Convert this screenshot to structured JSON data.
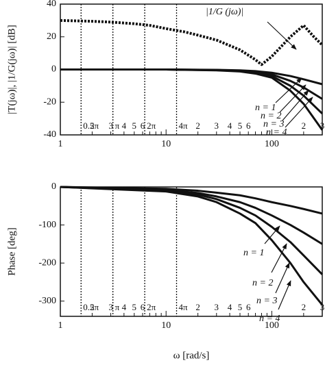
{
  "chart_data": [
    {
      "type": "line",
      "ylabel": "|T(jω)|, |1/G(jω)| [dB]",
      "xscale": "log",
      "xlim": [
        1,
        300
      ],
      "ylim": [
        -40,
        40
      ],
      "yticks": [
        -40,
        -20,
        0,
        20,
        40
      ],
      "xticks": [
        1,
        2,
        3,
        4,
        5,
        6,
        10,
        {
          "value": 20,
          "label": "2"
        },
        {
          "value": 30,
          "label": "3"
        },
        {
          "value": 40,
          "label": "4"
        },
        {
          "value": 50,
          "label": "5"
        },
        {
          "value": 60,
          "label": "6"
        },
        100,
        {
          "value": 200,
          "label": "2"
        },
        {
          "value": 300,
          "label": "3"
        }
      ],
      "xminorticks": [
        7,
        8,
        9,
        70,
        80,
        90
      ],
      "vlines": [
        {
          "value": 1.5708,
          "label": "0.5π"
        },
        {
          "value": 3.1416,
          "label": "π"
        },
        {
          "value": 6.2832,
          "label": "2π"
        },
        {
          "value": 12.566,
          "label": "4π"
        }
      ],
      "series": [
        {
          "name": "|1/G (jω)|",
          "color": "#111111",
          "style": "dotted",
          "x": [
            1,
            2,
            3,
            5,
            7,
            10,
            15,
            20,
            30,
            50,
            70,
            80,
            100,
            150,
            200,
            250,
            300
          ],
          "values": [
            30,
            29.5,
            29,
            28,
            27,
            25,
            23,
            21,
            18,
            12,
            6,
            3,
            8,
            20,
            27,
            20,
            15
          ]
        },
        {
          "name": "n = 1",
          "color": "#111111",
          "style": "solid",
          "x": [
            1,
            10,
            30,
            50,
            70,
            100,
            150,
            200,
            300
          ],
          "values": [
            0,
            0,
            -0.2,
            -0.5,
            -1,
            -2,
            -4,
            -6,
            -9
          ]
        },
        {
          "name": "n = 2",
          "color": "#111111",
          "style": "solid",
          "x": [
            1,
            10,
            30,
            50,
            70,
            100,
            150,
            200,
            300
          ],
          "values": [
            0,
            0,
            -0.3,
            -0.8,
            -1.5,
            -3,
            -7,
            -11,
            -18
          ]
        },
        {
          "name": "n = 3",
          "color": "#111111",
          "style": "solid",
          "x": [
            1,
            10,
            30,
            50,
            70,
            100,
            150,
            200,
            300
          ],
          "values": [
            0,
            0,
            -0.4,
            -1,
            -2,
            -4,
            -10,
            -16,
            -27
          ]
        },
        {
          "name": "n = 4",
          "color": "#111111",
          "style": "solid",
          "x": [
            1,
            10,
            30,
            50,
            70,
            100,
            150,
            200,
            300
          ],
          "values": [
            0,
            0,
            -0.5,
            -1.2,
            -2.5,
            -5,
            -13,
            -21,
            -37
          ]
        }
      ]
    },
    {
      "type": "line",
      "ylabel": "Phase [deg]",
      "xlabel": "ω [rad/s]",
      "xscale": "log",
      "xlim": [
        1,
        300
      ],
      "ylim": [
        -340,
        0
      ],
      "yticks": [
        -300,
        -200,
        -100,
        0
      ],
      "xticks": [
        1,
        2,
        3,
        4,
        5,
        6,
        10,
        {
          "value": 20,
          "label": "2"
        },
        {
          "value": 30,
          "label": "3"
        },
        {
          "value": 40,
          "label": "4"
        },
        {
          "value": 50,
          "label": "5"
        },
        {
          "value": 60,
          "label": "6"
        },
        100,
        {
          "value": 200,
          "label": "2"
        },
        {
          "value": 300,
          "label": "3"
        }
      ],
      "xminorticks": [
        7,
        8,
        9,
        70,
        80,
        90
      ],
      "vlines": [
        {
          "value": 1.5708,
          "label": "0.5π"
        },
        {
          "value": 3.1416,
          "label": "π"
        },
        {
          "value": 6.2832,
          "label": "2π"
        },
        {
          "value": 12.566,
          "label": "4π"
        }
      ],
      "series": [
        {
          "name": "n = 1",
          "color": "#111111",
          "style": "solid",
          "x": [
            1,
            10,
            20,
            30,
            50,
            70,
            100,
            150,
            200,
            300
          ],
          "values": [
            0,
            -5,
            -10,
            -15,
            -22,
            -30,
            -40,
            -50,
            -58,
            -70
          ]
        },
        {
          "name": "n = 2",
          "color": "#111111",
          "style": "solid",
          "x": [
            1,
            10,
            20,
            30,
            50,
            70,
            100,
            150,
            200,
            300
          ],
          "values": [
            0,
            -8,
            -16,
            -25,
            -40,
            -55,
            -75,
            -100,
            -120,
            -150
          ]
        },
        {
          "name": "n = 3",
          "color": "#111111",
          "style": "solid",
          "x": [
            1,
            10,
            20,
            30,
            50,
            70,
            100,
            150,
            200,
            300
          ],
          "values": [
            0,
            -10,
            -20,
            -32,
            -55,
            -75,
            -105,
            -145,
            -180,
            -230
          ]
        },
        {
          "name": "n = 4",
          "color": "#111111",
          "style": "solid",
          "x": [
            1,
            10,
            20,
            30,
            50,
            70,
            100,
            150,
            200,
            300
          ],
          "values": [
            0,
            -12,
            -25,
            -40,
            -70,
            -95,
            -140,
            -200,
            -250,
            -310
          ]
        }
      ]
    }
  ]
}
